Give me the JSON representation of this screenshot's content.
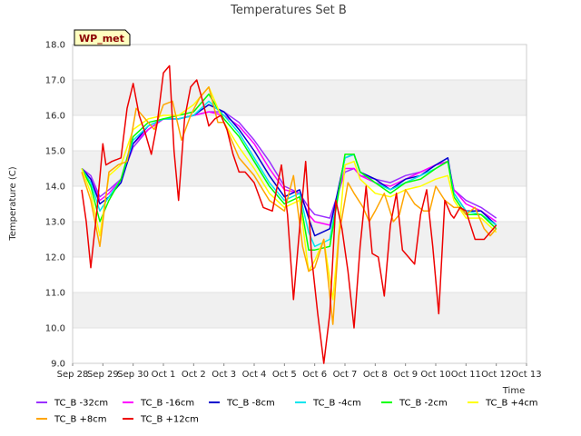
{
  "chart_data": {
    "type": "line",
    "title": "Temperatures Set B",
    "xlabel": "Time",
    "ylabel": "Temperature (C)",
    "badge": "WP_met",
    "ylim": [
      9.0,
      18.0
    ],
    "yticks": [
      9.0,
      10.0,
      11.0,
      12.0,
      13.0,
      14.0,
      15.0,
      16.0,
      17.0,
      18.0
    ],
    "xlim": [
      0,
      15
    ],
    "xticks": [
      {
        "v": 0,
        "label": "Sep 28"
      },
      {
        "v": 1,
        "label": "Sep 29"
      },
      {
        "v": 2,
        "label": "Sep 30"
      },
      {
        "v": 3,
        "label": "Oct 1"
      },
      {
        "v": 4,
        "label": "Oct 2"
      },
      {
        "v": 5,
        "label": "Oct 3"
      },
      {
        "v": 6,
        "label": "Oct 4"
      },
      {
        "v": 7,
        "label": "Oct 5"
      },
      {
        "v": 8,
        "label": "Oct 6"
      },
      {
        "v": 9,
        "label": "Oct 7"
      },
      {
        "v": 10,
        "label": "Oct 8"
      },
      {
        "v": 11,
        "label": "Oct 9"
      },
      {
        "v": 12,
        "label": "Oct 10"
      },
      {
        "v": 13,
        "label": "Oct 11"
      },
      {
        "v": 14,
        "label": "Oct 12"
      },
      {
        "v": 15,
        "label": "Oct 13"
      }
    ],
    "x_note": "x values are days after Sep 28 00:00",
    "grid": "horizontal bands",
    "legend_position": "bottom",
    "series": [
      {
        "name": "TC_B -32cm",
        "color": "#9b30ff",
        "x": [
          0.3,
          0.6,
          0.9,
          1.2,
          1.6,
          2.0,
          2.5,
          3.0,
          3.5,
          4.0,
          4.5,
          5.0,
          5.5,
          6.0,
          6.5,
          7.0,
          7.5,
          7.8,
          8.0,
          8.5,
          9.0,
          9.3,
          9.5,
          10.0,
          10.5,
          11.0,
          11.5,
          12.0,
          12.4,
          12.6,
          13.0,
          13.5,
          14.0
        ],
        "y": [
          14.5,
          14.3,
          13.7,
          13.9,
          14.2,
          15.1,
          15.6,
          15.9,
          15.9,
          16.0,
          16.1,
          16.1,
          15.8,
          15.3,
          14.7,
          14.0,
          13.8,
          13.4,
          13.2,
          13.1,
          14.4,
          14.5,
          14.3,
          14.2,
          14.1,
          14.3,
          14.4,
          14.6,
          14.7,
          13.9,
          13.6,
          13.4,
          13.1
        ]
      },
      {
        "name": "TC_B -16cm",
        "color": "#ff00ff",
        "x": [
          0.3,
          0.6,
          0.9,
          1.2,
          1.6,
          2.0,
          2.5,
          3.0,
          3.5,
          4.0,
          4.5,
          5.0,
          5.5,
          6.0,
          6.5,
          7.0,
          7.5,
          7.8,
          8.0,
          8.5,
          9.0,
          9.3,
          9.5,
          10.0,
          10.5,
          11.0,
          11.5,
          12.0,
          12.4,
          12.6,
          13.0,
          13.5,
          14.0
        ],
        "y": [
          14.5,
          14.2,
          13.6,
          13.8,
          14.2,
          15.2,
          15.6,
          15.9,
          15.9,
          16.0,
          16.1,
          16.0,
          15.7,
          15.2,
          14.5,
          13.9,
          13.8,
          13.2,
          13.0,
          12.9,
          14.5,
          14.5,
          14.3,
          14.1,
          14.0,
          14.2,
          14.4,
          14.6,
          14.7,
          13.9,
          13.5,
          13.3,
          13.0
        ]
      },
      {
        "name": "TC_B -8cm",
        "color": "#0000cd",
        "x": [
          0.3,
          0.6,
          0.9,
          1.2,
          1.6,
          2.0,
          2.5,
          3.0,
          3.5,
          4.0,
          4.5,
          5.0,
          5.5,
          6.0,
          6.5,
          7.0,
          7.5,
          7.8,
          8.0,
          8.5,
          9.0,
          9.3,
          9.5,
          10.0,
          10.5,
          11.0,
          11.5,
          12.0,
          12.4,
          12.6,
          13.0,
          13.5,
          14.0
        ],
        "y": [
          14.5,
          14.2,
          13.5,
          13.7,
          14.1,
          15.2,
          15.7,
          15.9,
          15.9,
          16.0,
          16.3,
          16.1,
          15.6,
          15.0,
          14.3,
          13.7,
          13.9,
          13.1,
          12.6,
          12.8,
          14.8,
          14.9,
          14.4,
          14.2,
          13.9,
          14.2,
          14.3,
          14.6,
          14.8,
          13.8,
          13.3,
          13.3,
          12.9
        ]
      },
      {
        "name": "TC_B -4cm",
        "color": "#00e5ee",
        "x": [
          0.3,
          0.6,
          0.9,
          1.2,
          1.6,
          2.0,
          2.5,
          3.0,
          3.5,
          4.0,
          4.5,
          5.0,
          5.5,
          6.0,
          6.5,
          7.0,
          7.5,
          7.8,
          8.0,
          8.5,
          9.0,
          9.3,
          9.5,
          10.0,
          10.5,
          11.0,
          11.5,
          12.0,
          12.4,
          12.6,
          13.0,
          13.5,
          14.0
        ],
        "y": [
          14.5,
          14.1,
          13.3,
          13.7,
          14.2,
          15.3,
          15.7,
          15.9,
          15.9,
          16.0,
          16.4,
          16.0,
          15.5,
          14.8,
          14.1,
          13.6,
          13.8,
          12.7,
          12.3,
          12.5,
          14.8,
          14.9,
          14.4,
          14.1,
          13.9,
          14.1,
          14.3,
          14.5,
          14.7,
          13.8,
          13.3,
          13.2,
          12.9
        ]
      },
      {
        "name": "TC_B -2cm",
        "color": "#00ff00",
        "x": [
          0.3,
          0.6,
          0.9,
          1.2,
          1.6,
          2.0,
          2.5,
          3.0,
          3.5,
          4.0,
          4.5,
          5.0,
          5.5,
          6.0,
          6.5,
          7.0,
          7.5,
          7.8,
          8.0,
          8.5,
          9.0,
          9.3,
          9.5,
          10.0,
          10.5,
          11.0,
          11.5,
          12.0,
          12.4,
          12.6,
          13.0,
          13.5,
          14.0
        ],
        "y": [
          14.5,
          14.0,
          13.0,
          13.6,
          14.2,
          15.4,
          15.8,
          15.9,
          16.0,
          16.1,
          16.6,
          15.9,
          15.4,
          14.7,
          14.0,
          13.5,
          13.7,
          12.2,
          12.2,
          12.3,
          14.9,
          14.9,
          14.4,
          14.1,
          13.8,
          14.1,
          14.2,
          14.5,
          14.7,
          13.7,
          13.2,
          13.2,
          12.8
        ]
      },
      {
        "name": "TC_B +4cm",
        "color": "#ffff00",
        "x": [
          0.3,
          0.6,
          0.9,
          1.2,
          1.6,
          2.0,
          2.5,
          3.0,
          3.5,
          4.0,
          4.5,
          5.0,
          5.5,
          6.0,
          6.5,
          7.0,
          7.5,
          7.8,
          8.0,
          8.3,
          8.6,
          9.0,
          9.3,
          9.5,
          10.0,
          10.5,
          11.0,
          11.5,
          12.0,
          12.4,
          12.6,
          13.0,
          13.5,
          14.0
        ],
        "y": [
          14.5,
          13.8,
          12.6,
          14.3,
          14.6,
          15.6,
          15.9,
          16.0,
          16.0,
          16.3,
          16.8,
          15.8,
          15.1,
          14.5,
          13.8,
          13.4,
          13.6,
          11.6,
          11.9,
          12.5,
          10.8,
          14.6,
          14.7,
          14.2,
          13.8,
          13.7,
          13.9,
          14.0,
          14.2,
          14.3,
          13.6,
          13.1,
          13.1,
          12.7
        ]
      },
      {
        "name": "TC_B +8cm",
        "color": "#ffa500",
        "x": [
          0.3,
          0.6,
          0.9,
          1.2,
          1.5,
          1.8,
          2.1,
          2.4,
          2.7,
          3.0,
          3.3,
          3.6,
          3.9,
          4.2,
          4.5,
          4.8,
          5.0,
          5.5,
          6.0,
          6.5,
          7.0,
          7.3,
          7.6,
          7.8,
          8.0,
          8.3,
          8.6,
          8.8,
          9.1,
          9.3,
          9.6,
          9.8,
          10.0,
          10.3,
          10.6,
          10.8,
          11.0,
          11.3,
          11.6,
          11.8,
          12.0,
          12.3,
          12.6,
          12.8,
          13.0,
          13.3,
          13.6,
          13.8,
          14.0
        ],
        "y": [
          14.4,
          13.6,
          12.3,
          14.4,
          14.6,
          14.7,
          16.2,
          15.9,
          15.6,
          16.3,
          16.4,
          15.3,
          16.0,
          16.5,
          16.8,
          15.8,
          15.8,
          14.8,
          14.3,
          13.6,
          13.3,
          14.3,
          12.3,
          11.6,
          11.7,
          12.5,
          10.1,
          12.6,
          14.1,
          13.8,
          13.4,
          13.0,
          13.3,
          13.8,
          13.0,
          13.2,
          13.9,
          13.5,
          13.3,
          13.3,
          14.0,
          13.6,
          13.4,
          13.4,
          13.2,
          13.4,
          12.8,
          12.6,
          12.8
        ]
      },
      {
        "name": "TC_B +12cm",
        "color": "#ee0000",
        "x": [
          0.3,
          0.45,
          0.6,
          0.8,
          1.0,
          1.1,
          1.3,
          1.6,
          1.8,
          2.0,
          2.2,
          2.4,
          2.6,
          2.8,
          3.0,
          3.2,
          3.35,
          3.5,
          3.7,
          3.9,
          4.1,
          4.3,
          4.5,
          4.7,
          4.9,
          5.1,
          5.3,
          5.5,
          5.7,
          6.0,
          6.3,
          6.6,
          6.9,
          7.1,
          7.3,
          7.5,
          7.7,
          7.9,
          8.1,
          8.3,
          8.5,
          8.6,
          8.7,
          8.9,
          9.1,
          9.3,
          9.5,
          9.7,
          9.9,
          10.1,
          10.3,
          10.5,
          10.7,
          10.9,
          11.1,
          11.3,
          11.5,
          11.7,
          11.9,
          12.1,
          12.3,
          12.5,
          12.6,
          12.8,
          13.0,
          13.3,
          13.6,
          13.8,
          14.0
        ],
        "y": [
          13.9,
          13.0,
          11.7,
          13.3,
          15.2,
          14.6,
          14.7,
          14.8,
          16.2,
          16.9,
          16.0,
          15.5,
          14.9,
          15.8,
          17.2,
          17.4,
          15.0,
          13.6,
          15.9,
          16.8,
          17.0,
          16.4,
          15.7,
          15.9,
          16.0,
          15.6,
          14.9,
          14.4,
          14.4,
          14.1,
          13.4,
          13.3,
          14.6,
          13.2,
          10.8,
          12.8,
          14.7,
          12.0,
          10.4,
          9.0,
          10.4,
          12.0,
          13.6,
          12.8,
          11.6,
          10.0,
          12.3,
          14.0,
          12.1,
          12.0,
          10.9,
          12.9,
          13.8,
          12.2,
          12.0,
          11.8,
          13.2,
          13.9,
          12.3,
          10.4,
          13.6,
          13.2,
          13.1,
          13.4,
          13.3,
          12.5,
          12.5,
          12.7,
          12.9
        ]
      }
    ]
  }
}
